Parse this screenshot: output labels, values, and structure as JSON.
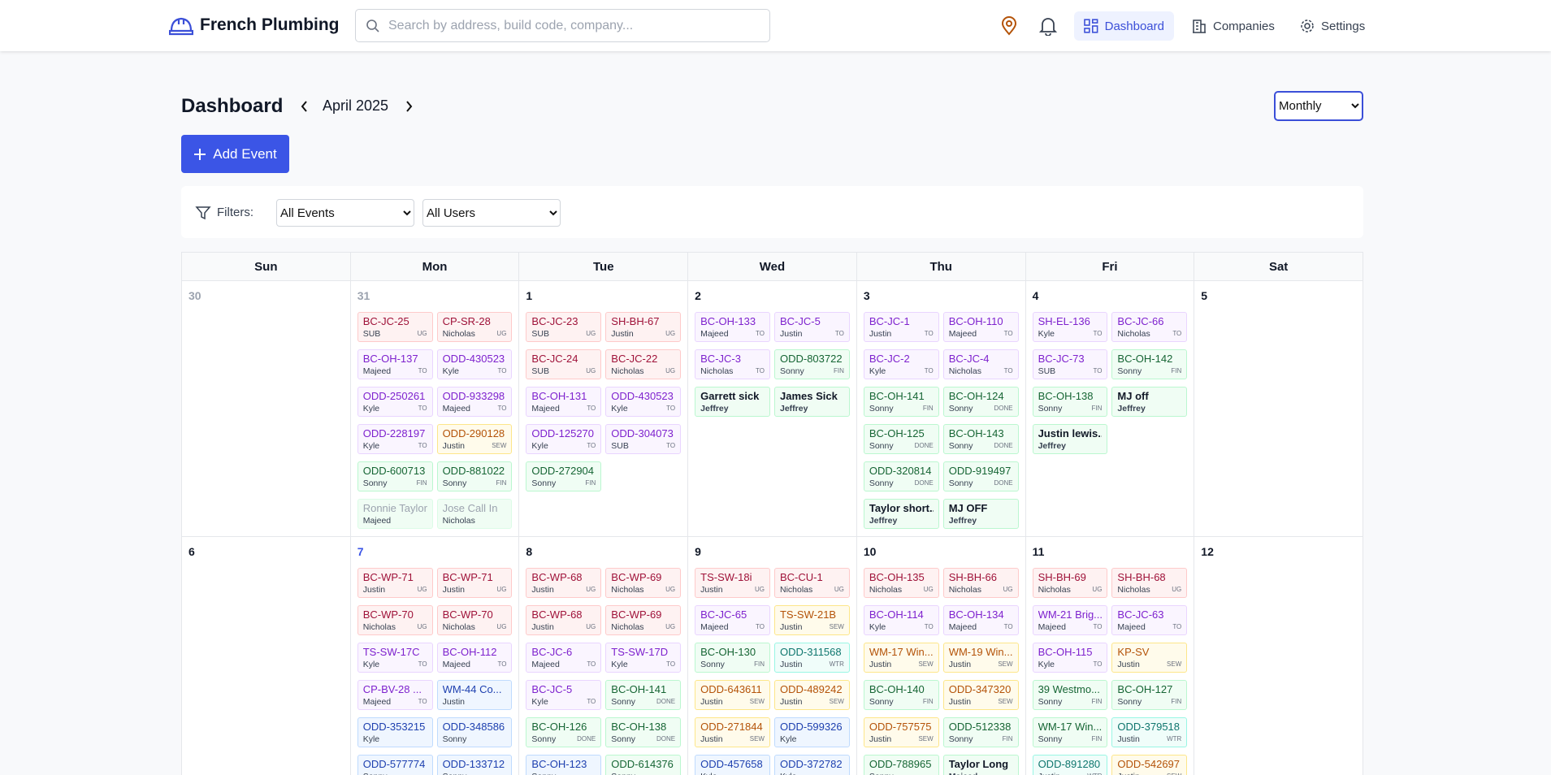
{
  "header": {
    "brand": "French Plumbing",
    "search_placeholder": "Search by address, build code, company...",
    "nav": [
      "Dashboard",
      "Companies",
      "Settings"
    ]
  },
  "page": {
    "title": "Dashboard",
    "month": "April 2025",
    "view": "Monthly",
    "add_button": "Add Event",
    "filters_label": "Filters:",
    "event_filter": "All Events",
    "user_filter": "All Users"
  },
  "calendar": {
    "weekdays": [
      "Sun",
      "Mon",
      "Tue",
      "Wed",
      "Thu",
      "Fri",
      "Sat"
    ],
    "weeks": [
      {
        "days": [
          {
            "day": 30,
            "muted": true,
            "events": []
          },
          {
            "day": 31,
            "muted": true,
            "events": [
              {
                "title": "BC-JC-25",
                "user": "SUB",
                "tag": "UG",
                "color": "red"
              },
              {
                "title": "CP-SR-28",
                "user": "Nicholas",
                "tag": "UG",
                "color": "red"
              },
              {
                "title": "BC-OH-137",
                "user": "Majeed",
                "tag": "TO",
                "color": "purple"
              },
              {
                "title": "ODD-430523",
                "user": "Kyle",
                "tag": "TO",
                "color": "purple"
              },
              {
                "title": "ODD-250261",
                "user": "Kyle",
                "tag": "TO",
                "color": "purple"
              },
              {
                "title": "ODD-933298",
                "user": "Majeed",
                "tag": "TO",
                "color": "purple"
              },
              {
                "title": "ODD-228197",
                "user": "Kyle",
                "tag": "TO",
                "color": "purple"
              },
              {
                "title": "ODD-290128",
                "user": "Justin",
                "tag": "SEW",
                "color": "orange"
              },
              {
                "title": "ODD-600713",
                "user": "Sonny",
                "tag": "FIN",
                "color": "green"
              },
              {
                "title": "ODD-881022",
                "user": "Sonny",
                "tag": "FIN",
                "color": "green"
              },
              {
                "title": "Ronnie Taylor",
                "user": "Majeed",
                "color": "gray"
              },
              {
                "title": "Jose Call In",
                "user": "Nicholas",
                "color": "gray"
              }
            ]
          },
          {
            "day": 1,
            "events": [
              {
                "title": "BC-JC-23",
                "user": "SUB",
                "tag": "UG",
                "color": "red"
              },
              {
                "title": "SH-BH-67",
                "user": "Justin",
                "tag": "UG",
                "color": "red"
              },
              {
                "title": "BC-JC-24",
                "user": "SUB",
                "tag": "UG",
                "color": "red"
              },
              {
                "title": "BC-JC-22",
                "user": "Nicholas",
                "tag": "UG",
                "color": "red"
              },
              {
                "title": "BC-OH-131",
                "user": "Majeed",
                "tag": "TO",
                "color": "purple"
              },
              {
                "title": "ODD-430523",
                "user": "Kyle",
                "tag": "TO",
                "color": "purple"
              },
              {
                "title": "ODD-125270",
                "user": "Kyle",
                "tag": "TO",
                "color": "purple"
              },
              {
                "title": "ODD-304073",
                "user": "SUB",
                "tag": "TO",
                "color": "purple"
              },
              {
                "title": "ODD-272904",
                "user": "Sonny",
                "tag": "FIN",
                "color": "green"
              }
            ]
          },
          {
            "day": 2,
            "events": [
              {
                "title": "BC-OH-133",
                "user": "Majeed",
                "tag": "TO",
                "color": "purple"
              },
              {
                "title": "BC-JC-5",
                "user": "Justin",
                "tag": "TO",
                "color": "purple"
              },
              {
                "title": "BC-JC-3",
                "user": "Nicholas",
                "tag": "TO",
                "color": "purple"
              },
              {
                "title": "ODD-803722",
                "user": "Sonny",
                "tag": "FIN",
                "color": "green"
              },
              {
                "title": "Garrett sick",
                "user": "Jeffrey",
                "color": "personal"
              },
              {
                "title": "James Sick",
                "user": "Jeffrey",
                "color": "personal"
              }
            ]
          },
          {
            "day": 3,
            "events": [
              {
                "title": "BC-JC-1",
                "user": "Justin",
                "tag": "TO",
                "color": "purple"
              },
              {
                "title": "BC-OH-110",
                "user": "Majeed",
                "tag": "TO",
                "color": "purple"
              },
              {
                "title": "BC-JC-2",
                "user": "Kyle",
                "tag": "TO",
                "color": "purple"
              },
              {
                "title": "BC-JC-4",
                "user": "Nicholas",
                "tag": "TO",
                "color": "purple"
              },
              {
                "title": "BC-OH-141",
                "user": "Sonny",
                "tag": "FIN",
                "color": "green"
              },
              {
                "title": "BC-OH-124",
                "user": "Sonny",
                "tag": "DONE",
                "color": "green"
              },
              {
                "title": "BC-OH-125",
                "user": "Sonny",
                "tag": "DONE",
                "color": "green"
              },
              {
                "title": "BC-OH-143",
                "user": "Sonny",
                "tag": "DONE",
                "color": "green"
              },
              {
                "title": "ODD-320814",
                "user": "Sonny",
                "tag": "DONE",
                "color": "green"
              },
              {
                "title": "ODD-919497",
                "user": "Sonny",
                "tag": "DONE",
                "color": "green"
              },
              {
                "title": "Taylor short...",
                "user": "Jeffrey",
                "color": "personal"
              },
              {
                "title": "MJ OFF",
                "user": "Jeffrey",
                "color": "personal"
              }
            ]
          },
          {
            "day": 4,
            "events": [
              {
                "title": "SH-EL-136",
                "user": "Kyle",
                "tag": "TO",
                "color": "purple"
              },
              {
                "title": "BC-JC-66",
                "user": "Nicholas",
                "tag": "TO",
                "color": "purple"
              },
              {
                "title": "BC-JC-73",
                "user": "SUB",
                "tag": "TO",
                "color": "purple"
              },
              {
                "title": "BC-OH-142",
                "user": "Sonny",
                "tag": "FIN",
                "color": "green"
              },
              {
                "title": "BC-OH-138",
                "user": "Sonny",
                "tag": "FIN",
                "color": "green"
              },
              {
                "title": "MJ off",
                "user": "Jeffrey",
                "color": "personal"
              },
              {
                "title": "Justin lewis...",
                "user": "Jeffrey",
                "color": "personal"
              }
            ]
          },
          {
            "day": 5,
            "events": []
          }
        ]
      },
      {
        "days": [
          {
            "day": 6,
            "events": []
          },
          {
            "day": 7,
            "today": true,
            "events": [
              {
                "title": "BC-WP-71",
                "user": "Justin",
                "tag": "UG",
                "color": "red"
              },
              {
                "title": "BC-WP-71",
                "user": "Justin",
                "tag": "UG",
                "color": "red"
              },
              {
                "title": "BC-WP-70",
                "user": "Nicholas",
                "tag": "UG",
                "color": "red"
              },
              {
                "title": "BC-WP-70",
                "user": "Nicholas",
                "tag": "UG",
                "color": "red"
              },
              {
                "title": "TS-SW-17C",
                "user": "Kyle",
                "tag": "TO",
                "color": "purple"
              },
              {
                "title": "BC-OH-112",
                "user": "Majeed",
                "tag": "TO",
                "color": "purple"
              },
              {
                "title": "CP-BV-28 ...",
                "user": "Majeed",
                "tag": "TO",
                "color": "purple"
              },
              {
                "title": "WM-44 Co...",
                "user": "Justin",
                "color": "blue"
              },
              {
                "title": "ODD-353215",
                "user": "Kyle",
                "color": "blue"
              },
              {
                "title": "ODD-348586",
                "user": "Sonny",
                "color": "blue"
              },
              {
                "title": "ODD-577774",
                "user": "Sonny",
                "color": "blue"
              },
              {
                "title": "ODD-133712",
                "user": "Sonny",
                "color": "blue"
              }
            ]
          },
          {
            "day": 8,
            "events": [
              {
                "title": "BC-WP-68",
                "user": "Justin",
                "tag": "UG",
                "color": "red"
              },
              {
                "title": "BC-WP-69",
                "user": "Nicholas",
                "tag": "UG",
                "color": "red"
              },
              {
                "title": "BC-WP-68",
                "user": "Justin",
                "tag": "UG",
                "color": "red"
              },
              {
                "title": "BC-WP-69",
                "user": "Nicholas",
                "tag": "UG",
                "color": "red"
              },
              {
                "title": "BC-JC-6",
                "user": "Majeed",
                "tag": "TO",
                "color": "purple"
              },
              {
                "title": "TS-SW-17D",
                "user": "Kyle",
                "tag": "TO",
                "color": "purple"
              },
              {
                "title": "BC-JC-5",
                "user": "Kyle",
                "tag": "TO",
                "color": "purple"
              },
              {
                "title": "BC-OH-141",
                "user": "Sonny",
                "tag": "DONE",
                "color": "green"
              },
              {
                "title": "BC-OH-126",
                "user": "Sonny",
                "tag": "DONE",
                "color": "green"
              },
              {
                "title": "BC-OH-138",
                "user": "Sonny",
                "tag": "DONE",
                "color": "green"
              },
              {
                "title": "BC-OH-123",
                "user": "Sonny",
                "color": "blue"
              },
              {
                "title": "ODD-614376",
                "user": "Sonny",
                "color": "green"
              }
            ]
          },
          {
            "day": 9,
            "events": [
              {
                "title": "TS-SW-18i",
                "user": "Justin",
                "tag": "UG",
                "color": "red"
              },
              {
                "title": "BC-CU-1",
                "user": "Nicholas",
                "tag": "UG",
                "color": "red"
              },
              {
                "title": "BC-JC-65",
                "user": "Majeed",
                "tag": "TO",
                "color": "purple"
              },
              {
                "title": "TS-SW-21B",
                "user": "Justin",
                "tag": "SEW",
                "color": "orange"
              },
              {
                "title": "BC-OH-130",
                "user": "Sonny",
                "tag": "FIN",
                "color": "green"
              },
              {
                "title": "ODD-311568",
                "user": "Justin",
                "tag": "WTR",
                "color": "teal"
              },
              {
                "title": "ODD-643611",
                "user": "Justin",
                "tag": "SEW",
                "color": "orange"
              },
              {
                "title": "ODD-489242",
                "user": "Justin",
                "tag": "SEW",
                "color": "orange"
              },
              {
                "title": "ODD-271844",
                "user": "Justin",
                "tag": "SEW",
                "color": "orange"
              },
              {
                "title": "ODD-599326",
                "user": "Kyle",
                "color": "blue"
              },
              {
                "title": "ODD-457658",
                "user": "Kyle",
                "color": "blue"
              },
              {
                "title": "ODD-372782",
                "user": "Kyle",
                "color": "blue"
              }
            ]
          },
          {
            "day": 10,
            "events": [
              {
                "title": "BC-OH-135",
                "user": "Nicholas",
                "tag": "UG",
                "color": "red"
              },
              {
                "title": "SH-BH-66",
                "user": "Nicholas",
                "tag": "UG",
                "color": "red"
              },
              {
                "title": "BC-OH-114",
                "user": "Kyle",
                "tag": "TO",
                "color": "purple"
              },
              {
                "title": "BC-OH-134",
                "user": "Majeed",
                "tag": "TO",
                "color": "purple"
              },
              {
                "title": "WM-17 Win...",
                "user": "Justin",
                "tag": "SEW",
                "color": "orange"
              },
              {
                "title": "WM-19 Win...",
                "user": "Justin",
                "tag": "SEW",
                "color": "orange"
              },
              {
                "title": "BC-OH-140",
                "user": "Sonny",
                "tag": "FIN",
                "color": "green"
              },
              {
                "title": "ODD-347320",
                "user": "Justin",
                "tag": "SEW",
                "color": "orange"
              },
              {
                "title": "ODD-757575",
                "user": "Justin",
                "tag": "SEW",
                "color": "orange"
              },
              {
                "title": "ODD-512338",
                "user": "Sonny",
                "tag": "FIN",
                "color": "green"
              },
              {
                "title": "ODD-788965",
                "user": "Sonny",
                "color": "green"
              },
              {
                "title": "Taylor Long",
                "user": "Majeed",
                "color": "personal"
              }
            ]
          },
          {
            "day": 11,
            "events": [
              {
                "title": "SH-BH-69",
                "user": "Nicholas",
                "tag": "UG",
                "color": "red"
              },
              {
                "title": "SH-BH-68",
                "user": "Nicholas",
                "tag": "UG",
                "color": "red"
              },
              {
                "title": "WM-21 Brig...",
                "user": "Majeed",
                "tag": "TO",
                "color": "purple"
              },
              {
                "title": "BC-JC-63",
                "user": "Majeed",
                "tag": "TO",
                "color": "purple"
              },
              {
                "title": "BC-OH-115",
                "user": "Kyle",
                "tag": "TO",
                "color": "purple"
              },
              {
                "title": "KP-SV",
                "user": "Justin",
                "tag": "SEW",
                "color": "orange"
              },
              {
                "title": "39 Westmo...",
                "user": "Sonny",
                "tag": "FIN",
                "color": "green"
              },
              {
                "title": "BC-OH-127",
                "user": "Sonny",
                "tag": "FIN",
                "color": "green"
              },
              {
                "title": "WM-17 Win...",
                "user": "Sonny",
                "tag": "FIN",
                "color": "green"
              },
              {
                "title": "ODD-379518",
                "user": "Justin",
                "tag": "WTR",
                "color": "teal"
              },
              {
                "title": "ODD-891280",
                "user": "Justin",
                "tag": "WTR",
                "color": "teal"
              },
              {
                "title": "ODD-542697",
                "user": "Justin",
                "tag": "SEW",
                "color": "orange"
              }
            ]
          },
          {
            "day": 12,
            "events": []
          }
        ]
      }
    ]
  }
}
